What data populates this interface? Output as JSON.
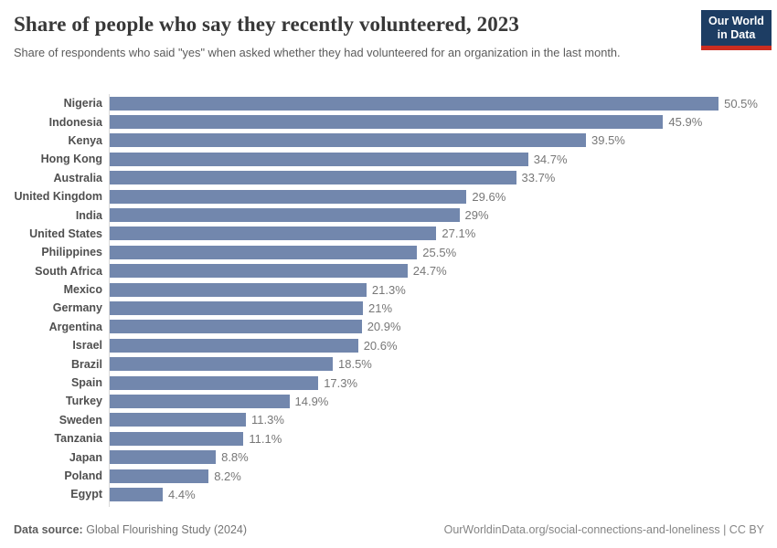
{
  "header": {
    "title": "Share of people who say they recently volunteered, 2023",
    "subtitle": "Share of respondents who said \"yes\" when asked whether they had volunteered for an organization in the last month.",
    "logo": {
      "line1": "Our World",
      "line2": "in Data"
    }
  },
  "chart_data": {
    "type": "bar",
    "orientation": "horizontal",
    "title": "Share of people who say they recently volunteered, 2023",
    "xlabel": "",
    "ylabel": "",
    "xlim": [
      0,
      54
    ],
    "grid": false,
    "legend": false,
    "bar_color": "#7287ad",
    "categories": [
      "Nigeria",
      "Indonesia",
      "Kenya",
      "Hong Kong",
      "Australia",
      "United Kingdom",
      "India",
      "United States",
      "Philippines",
      "South Africa",
      "Mexico",
      "Germany",
      "Argentina",
      "Israel",
      "Brazil",
      "Spain",
      "Turkey",
      "Sweden",
      "Tanzania",
      "Japan",
      "Poland",
      "Egypt"
    ],
    "values": [
      50.5,
      45.9,
      39.5,
      34.7,
      33.7,
      29.6,
      29,
      27.1,
      25.5,
      24.7,
      21.3,
      21,
      20.9,
      20.6,
      18.5,
      17.3,
      14.9,
      11.3,
      11.1,
      8.8,
      8.2,
      4.4
    ],
    "value_labels": [
      "50.5%",
      "45.9%",
      "39.5%",
      "34.7%",
      "33.7%",
      "29.6%",
      "29%",
      "27.1%",
      "25.5%",
      "24.7%",
      "21.3%",
      "21%",
      "20.9%",
      "20.6%",
      "18.5%",
      "17.3%",
      "14.9%",
      "11.3%",
      "11.1%",
      "8.8%",
      "8.2%",
      "4.4%"
    ]
  },
  "footer": {
    "source_label": "Data source:",
    "source_value": "Global Flourishing Study (2024)",
    "citation": "OurWorldinData.org/social-connections-and-loneliness | CC BY"
  },
  "colors": {
    "bar": "#7287ad",
    "logo_bg": "#1d3d63",
    "logo_accent": "#cb2d20",
    "axis": "#dadada"
  }
}
